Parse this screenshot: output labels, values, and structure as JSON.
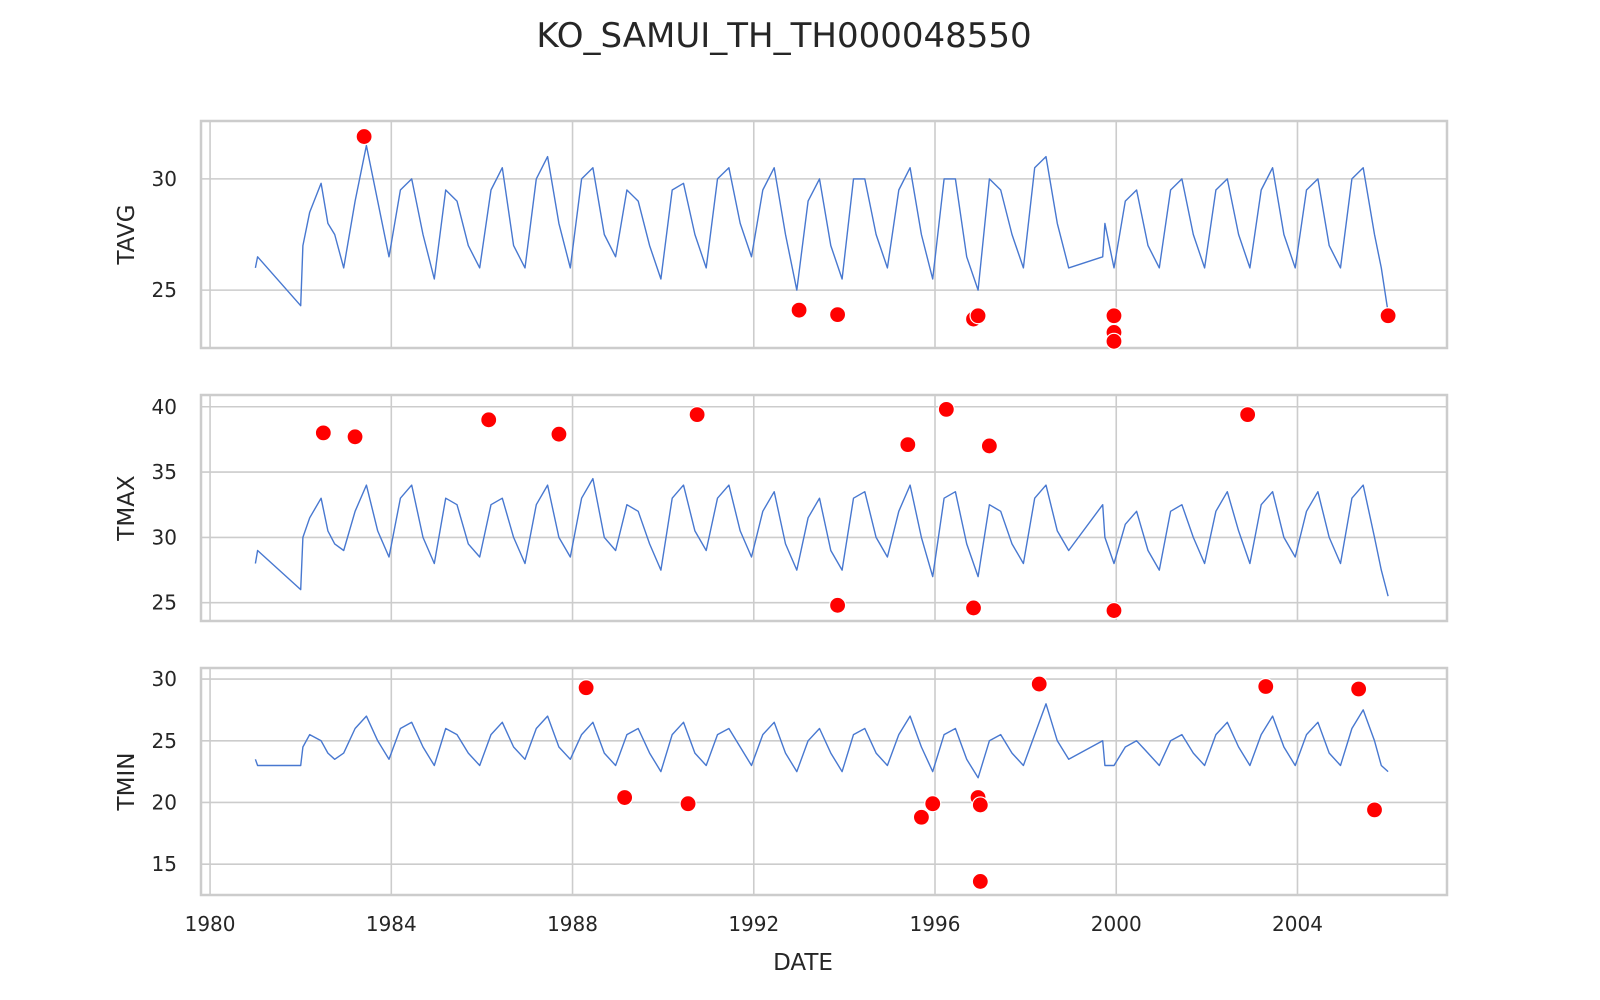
{
  "chart_data": {
    "type": "line",
    "title": "KO_SAMUI_TH_TH000048550",
    "xlabel": "DATE",
    "x_ticks": [
      1980,
      1984,
      1988,
      1992,
      1996,
      2000,
      2004
    ],
    "xlim": [
      1979.8,
      2007.3
    ],
    "line_color": "#4878d0",
    "outlier_color": "#ff0000",
    "grid": true,
    "panels": [
      {
        "ylabel": "TAVG",
        "ylim": [
          22.4,
          32.6
        ],
        "y_ticks": [
          25,
          30
        ],
        "series": {
          "x": [
            1981.0,
            1981.05,
            1982.0,
            1982.05,
            1982.2,
            1982.45,
            1982.6,
            1982.75,
            1982.95,
            1983.2,
            1983.45,
            1983.7,
            1983.95,
            1984.2,
            1984.45,
            1984.7,
            1984.95,
            1985.2,
            1985.45,
            1985.7,
            1985.95,
            1986.2,
            1986.45,
            1986.7,
            1986.95,
            1987.2,
            1987.45,
            1987.7,
            1987.95,
            1988.2,
            1988.45,
            1988.7,
            1988.95,
            1989.2,
            1989.45,
            1989.7,
            1989.95,
            1990.2,
            1990.45,
            1990.7,
            1990.95,
            1991.2,
            1991.45,
            1991.7,
            1991.95,
            1992.2,
            1992.45,
            1992.7,
            1992.95,
            1993.2,
            1993.45,
            1993.7,
            1993.95,
            1994.2,
            1994.45,
            1994.7,
            1994.95,
            1995.2,
            1995.45,
            1995.7,
            1995.95,
            1996.2,
            1996.45,
            1996.7,
            1996.95,
            1997.2,
            1997.45,
            1997.7,
            1997.95,
            1998.2,
            1998.45,
            1998.7,
            1998.95,
            1999.7,
            1999.75,
            1999.95,
            2000.2,
            2000.45,
            2000.7,
            2000.95,
            2001.2,
            2001.45,
            2001.7,
            2001.95,
            2002.2,
            2002.45,
            2002.7,
            2002.95,
            2003.2,
            2003.45,
            2003.7,
            2003.95,
            2004.2,
            2004.45,
            2004.7,
            2004.95,
            2005.2,
            2005.45,
            2005.7,
            2005.85,
            2006.0
          ],
          "y": [
            26.0,
            26.5,
            24.3,
            27.0,
            28.5,
            29.8,
            28.0,
            27.5,
            26.0,
            29.0,
            31.5,
            29.0,
            26.5,
            29.5,
            30.0,
            27.5,
            25.5,
            29.5,
            29.0,
            27.0,
            26.0,
            29.5,
            30.5,
            27.0,
            26.0,
            30.0,
            31.0,
            28.0,
            26.0,
            30.0,
            30.5,
            27.5,
            26.5,
            29.5,
            29.0,
            27.0,
            25.5,
            29.5,
            29.8,
            27.5,
            26.0,
            30.0,
            30.5,
            28.0,
            26.5,
            29.5,
            30.5,
            27.5,
            25.0,
            29.0,
            30.0,
            27.0,
            25.5,
            30.0,
            30.0,
            27.5,
            26.0,
            29.5,
            30.5,
            27.5,
            25.5,
            30.0,
            30.0,
            26.5,
            25.0,
            30.0,
            29.5,
            27.5,
            26.0,
            30.5,
            31.0,
            28.0,
            26.0,
            26.5,
            28.0,
            26.0,
            29.0,
            29.5,
            27.0,
            26.0,
            29.5,
            30.0,
            27.5,
            26.0,
            29.5,
            30.0,
            27.5,
            26.0,
            29.5,
            30.5,
            27.5,
            26.0,
            29.5,
            30.0,
            27.0,
            26.0,
            30.0,
            30.5,
            27.5,
            26.0,
            24.0
          ]
        },
        "outliers": {
          "x": [
            1983.4,
            1993.0,
            1993.85,
            1996.85,
            1996.95,
            1999.95,
            1999.95,
            1999.95,
            2006.0
          ],
          "y": [
            31.9,
            24.1,
            23.9,
            23.7,
            23.85,
            23.85,
            23.1,
            22.7,
            23.85
          ]
        }
      },
      {
        "ylabel": "TMAX",
        "ylim": [
          23.6,
          40.9
        ],
        "y_ticks": [
          25,
          30,
          35,
          40
        ],
        "series": {
          "x": [
            1981.0,
            1981.05,
            1982.0,
            1982.05,
            1982.2,
            1982.45,
            1982.6,
            1982.75,
            1982.95,
            1983.2,
            1983.45,
            1983.7,
            1983.95,
            1984.2,
            1984.45,
            1984.7,
            1984.95,
            1985.2,
            1985.45,
            1985.7,
            1985.95,
            1986.2,
            1986.45,
            1986.7,
            1986.95,
            1987.2,
            1987.45,
            1987.7,
            1987.95,
            1988.2,
            1988.45,
            1988.7,
            1988.95,
            1989.2,
            1989.45,
            1989.7,
            1989.95,
            1990.2,
            1990.45,
            1990.7,
            1990.95,
            1991.2,
            1991.45,
            1991.7,
            1991.95,
            1992.2,
            1992.45,
            1992.7,
            1992.95,
            1993.2,
            1993.45,
            1993.7,
            1993.95,
            1994.2,
            1994.45,
            1994.7,
            1994.95,
            1995.2,
            1995.45,
            1995.7,
            1995.95,
            1996.2,
            1996.45,
            1996.7,
            1996.95,
            1997.2,
            1997.45,
            1997.7,
            1997.95,
            1998.2,
            1998.45,
            1998.7,
            1998.95,
            1999.7,
            1999.75,
            1999.95,
            2000.2,
            2000.45,
            2000.7,
            2000.95,
            2001.2,
            2001.45,
            2001.7,
            2001.95,
            2002.2,
            2002.45,
            2002.7,
            2002.95,
            2003.2,
            2003.45,
            2003.7,
            2003.95,
            2004.2,
            2004.45,
            2004.7,
            2004.95,
            2005.2,
            2005.45,
            2005.7,
            2005.85,
            2006.0
          ],
          "y": [
            28.0,
            29.0,
            26.0,
            30.0,
            31.5,
            33.0,
            30.5,
            29.5,
            29.0,
            32.0,
            34.0,
            30.5,
            28.5,
            33.0,
            34.0,
            30.0,
            28.0,
            33.0,
            32.5,
            29.5,
            28.5,
            32.5,
            33.0,
            30.0,
            28.0,
            32.5,
            34.0,
            30.0,
            28.5,
            33.0,
            34.5,
            30.0,
            29.0,
            32.5,
            32.0,
            29.5,
            27.5,
            33.0,
            34.0,
            30.5,
            29.0,
            33.0,
            34.0,
            30.5,
            28.5,
            32.0,
            33.5,
            29.5,
            27.5,
            31.5,
            33.0,
            29.0,
            27.5,
            33.0,
            33.5,
            30.0,
            28.5,
            32.0,
            34.0,
            30.0,
            27.0,
            33.0,
            33.5,
            29.5,
            27.0,
            32.5,
            32.0,
            29.5,
            28.0,
            33.0,
            34.0,
            30.5,
            29.0,
            32.5,
            30.0,
            28.0,
            31.0,
            32.0,
            29.0,
            27.5,
            32.0,
            32.5,
            30.0,
            28.0,
            32.0,
            33.5,
            30.5,
            28.0,
            32.5,
            33.5,
            30.0,
            28.5,
            32.0,
            33.5,
            30.0,
            28.0,
            33.0,
            34.0,
            30.0,
            27.5,
            25.5
          ]
        },
        "outliers": {
          "x": [
            1982.5,
            1983.2,
            1986.15,
            1987.7,
            1990.75,
            1993.85,
            1995.4,
            1996.25,
            1996.85,
            1997.2,
            1999.95,
            2002.9
          ],
          "y": [
            38.0,
            37.7,
            39.0,
            37.9,
            39.4,
            24.8,
            37.1,
            39.8,
            24.6,
            37.0,
            24.4,
            39.4
          ]
        }
      },
      {
        "ylabel": "TMIN",
        "ylim": [
          12.5,
          30.9
        ],
        "y_ticks": [
          15,
          20,
          25,
          30
        ],
        "series": {
          "x": [
            1981.0,
            1981.05,
            1982.0,
            1982.05,
            1982.2,
            1982.45,
            1982.6,
            1982.75,
            1982.95,
            1983.2,
            1983.45,
            1983.7,
            1983.95,
            1984.2,
            1984.45,
            1984.7,
            1984.95,
            1985.2,
            1985.45,
            1985.7,
            1985.95,
            1986.2,
            1986.45,
            1986.7,
            1986.95,
            1987.2,
            1987.45,
            1987.7,
            1987.95,
            1988.2,
            1988.45,
            1988.7,
            1988.95,
            1989.2,
            1989.45,
            1989.7,
            1989.95,
            1990.2,
            1990.45,
            1990.7,
            1990.95,
            1991.2,
            1991.45,
            1991.7,
            1991.95,
            1992.2,
            1992.45,
            1992.7,
            1992.95,
            1993.2,
            1993.45,
            1993.7,
            1993.95,
            1994.2,
            1994.45,
            1994.7,
            1994.95,
            1995.2,
            1995.45,
            1995.7,
            1995.95,
            1996.2,
            1996.45,
            1996.7,
            1996.95,
            1997.2,
            1997.45,
            1997.7,
            1997.95,
            1998.2,
            1998.45,
            1998.7,
            1998.95,
            1999.7,
            1999.75,
            1999.95,
            2000.2,
            2000.45,
            2000.7,
            2000.95,
            2001.2,
            2001.45,
            2001.7,
            2001.95,
            2002.2,
            2002.45,
            2002.7,
            2002.95,
            2003.2,
            2003.45,
            2003.7,
            2003.95,
            2004.2,
            2004.45,
            2004.7,
            2004.95,
            2005.2,
            2005.45,
            2005.7,
            2005.85,
            2006.0
          ],
          "y": [
            23.5,
            23.0,
            23.0,
            24.5,
            25.5,
            25.0,
            24.0,
            23.5,
            24.0,
            26.0,
            27.0,
            25.0,
            23.5,
            26.0,
            26.5,
            24.5,
            23.0,
            26.0,
            25.5,
            24.0,
            23.0,
            25.5,
            26.5,
            24.5,
            23.5,
            26.0,
            27.0,
            24.5,
            23.5,
            25.5,
            26.5,
            24.0,
            23.0,
            25.5,
            26.0,
            24.0,
            22.5,
            25.5,
            26.5,
            24.0,
            23.0,
            25.5,
            26.0,
            24.5,
            23.0,
            25.5,
            26.5,
            24.0,
            22.5,
            25.0,
            26.0,
            24.0,
            22.5,
            25.5,
            26.0,
            24.0,
            23.0,
            25.5,
            27.0,
            24.5,
            22.5,
            25.5,
            26.0,
            23.5,
            22.0,
            25.0,
            25.5,
            24.0,
            23.0,
            25.5,
            28.0,
            25.0,
            23.5,
            25.0,
            23.0,
            23.0,
            24.5,
            25.0,
            24.0,
            23.0,
            25.0,
            25.5,
            24.0,
            23.0,
            25.5,
            26.5,
            24.5,
            23.0,
            25.5,
            27.0,
            24.5,
            23.0,
            25.5,
            26.5,
            24.0,
            23.0,
            26.0,
            27.5,
            25.0,
            23.0,
            22.5
          ]
        },
        "outliers": {
          "x": [
            1988.3,
            1989.15,
            1990.55,
            1995.7,
            1995.95,
            1996.95,
            1997.0,
            1997.0,
            1998.3,
            2003.3,
            2005.35,
            2005.7
          ],
          "y": [
            29.3,
            20.4,
            19.9,
            18.8,
            19.9,
            20.4,
            13.6,
            19.8,
            29.6,
            29.4,
            29.2,
            19.4
          ]
        }
      }
    ]
  }
}
